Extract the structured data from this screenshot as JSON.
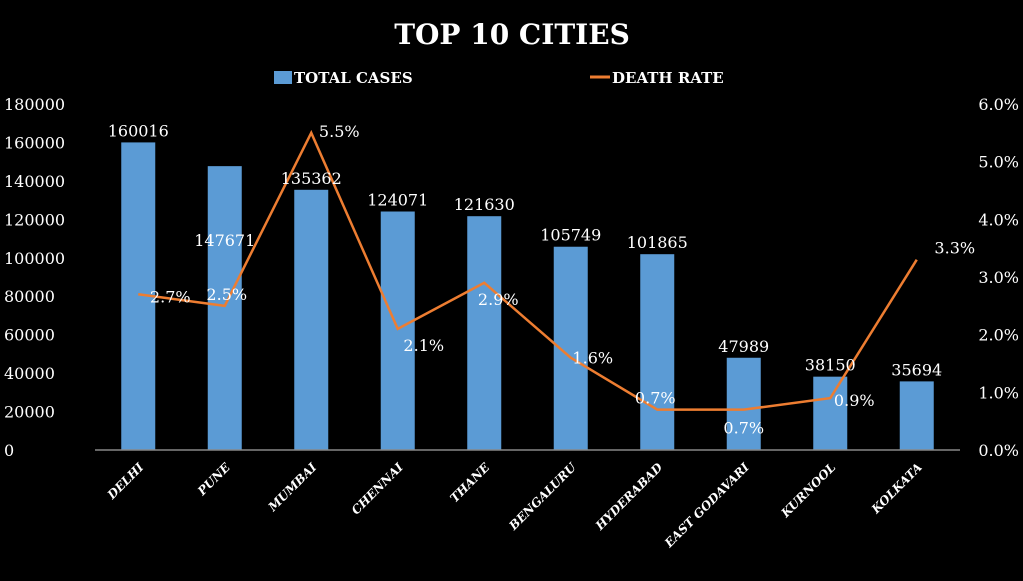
{
  "chart_data": {
    "type": "bar+line",
    "title": "TOP 10 CITIES",
    "categories": [
      "DELHI",
      "PUNE",
      "MUMBAI",
      "CHENNAI",
      "THANE",
      "BENGALURU",
      "HYDERABAD",
      "EAST GODAVARI",
      "KURNOOL",
      "KOLKATA"
    ],
    "series": [
      {
        "name": "TOTAL CASES",
        "type": "bar",
        "axis": "left",
        "color": "#5b9bd5",
        "values": [
          160016,
          147671,
          135362,
          124071,
          121630,
          105749,
          101865,
          47989,
          38150,
          35694
        ],
        "labels": [
          "160016",
          "147671",
          "135362",
          "124071",
          "121630",
          "105749",
          "101865",
          "47989",
          "38150",
          "35694"
        ]
      },
      {
        "name": "DEATH RATE",
        "type": "line",
        "axis": "right",
        "color": "#ed7d31",
        "values": [
          2.7,
          2.5,
          5.5,
          2.1,
          2.9,
          1.6,
          0.7,
          0.7,
          0.9,
          3.3
        ],
        "labels": [
          "2.7%",
          "2.5%",
          "5.5%",
          "2.1%",
          "2.9%",
          "1.6%",
          "0.7%",
          "0.7%",
          "0.9%",
          "3.3%"
        ]
      }
    ],
    "y_left": {
      "range": [
        0,
        180000
      ],
      "ticks": [
        "0",
        "20000",
        "40000",
        "60000",
        "80000",
        "100000",
        "120000",
        "140000",
        "160000",
        "180000"
      ]
    },
    "y_right": {
      "range": [
        0,
        6
      ],
      "ticks": [
        "0.0%",
        "1.0%",
        "2.0%",
        "3.0%",
        "4.0%",
        "5.0%",
        "6.0%"
      ]
    },
    "legend_position": "top",
    "grid": false
  }
}
